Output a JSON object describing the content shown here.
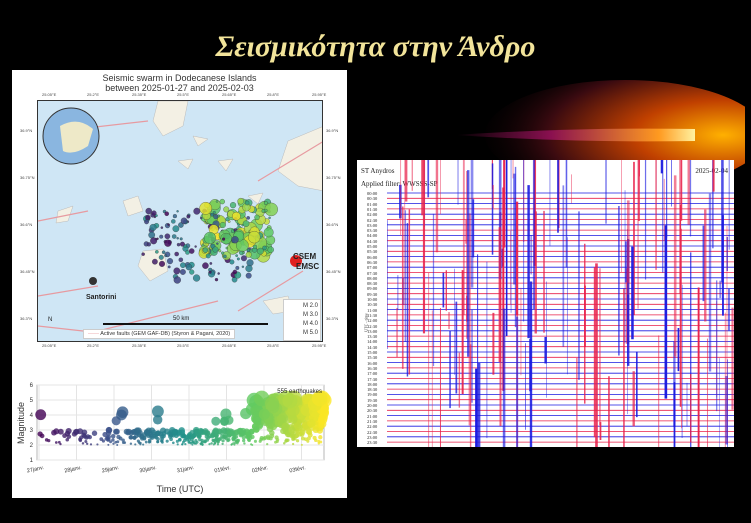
{
  "slide": {
    "title": "Σεισμικότητα στην Άνδρο"
  },
  "map": {
    "title_line1": "Seismic swarm in Dodecanese Islands",
    "title_line2": "between 2025-01-27 and 2025-02-03",
    "lon_ticks": [
      "25.05°E",
      "25.2°E",
      "25.35°E",
      "25.5°E",
      "25.65°E",
      "25.8°E",
      "25.95°E"
    ],
    "lat_ticks": [
      "36.9°N",
      "36.75°N",
      "36.6°N",
      "36.45°N",
      "36.3°N"
    ],
    "place_label": "Santorini",
    "logo_line1": "CSEM",
    "logo_line2": "EMSC",
    "north": "N",
    "scale_label": "50 km",
    "faults_legend": "Active faults (GEM GAF-DB) (Styron & Pagani, 2020)",
    "mag_legend": [
      "M 2.0",
      "M 3.0",
      "M 4.0",
      "M 5.0"
    ]
  },
  "chart_data": {
    "type": "scatter",
    "xlabel": "Time (UTC)",
    "ylabel": "Magnitude",
    "ylim": [
      1,
      6
    ],
    "yticks": [
      "1",
      "2",
      "3",
      "4",
      "5",
      "6"
    ],
    "xticks": [
      "27janv.",
      "28janv.",
      "29janv.",
      "30janv.",
      "31janv.",
      "01févr.",
      "02févr.",
      "03févr."
    ],
    "annotation": "555 earthquakes",
    "grid": true
  },
  "seismogram": {
    "station": "ST Anydros",
    "date": "2025-02-04",
    "filter": "Applied filter: WWSSS-SP",
    "axis_label": "UTC - time",
    "times": [
      "00:00",
      "00:30",
      "01:00",
      "01:30",
      "02:00",
      "02:30",
      "03:00",
      "03:30",
      "04:00",
      "04:30",
      "05:00",
      "05:30",
      "06:00",
      "06:30",
      "07:00",
      "07:30",
      "08:00",
      "08:30",
      "09:00",
      "09:30",
      "10:00",
      "10:30",
      "11:00",
      "11:30",
      "12:00",
      "12:30",
      "13:00",
      "13:30",
      "14:00",
      "14:30",
      "15:00",
      "15:30",
      "16:00",
      "16:30",
      "17:00",
      "17:30",
      "18:00",
      "18:30",
      "19:00",
      "19:30",
      "20:00",
      "20:30",
      "21:00",
      "21:30",
      "22:00",
      "22:30",
      "23:00",
      "23:30"
    ]
  },
  "colors": {
    "title": "#f2e49a",
    "trace_red": "#e8204a",
    "trace_blue": "#1a1ae0"
  }
}
